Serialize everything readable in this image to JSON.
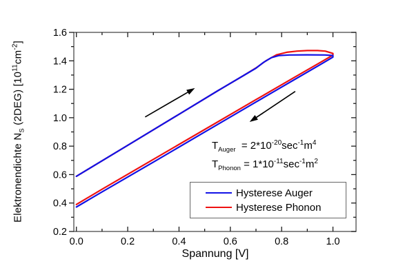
{
  "figure": {
    "x_axis": {
      "label": "Spannung [V]"
    },
    "y_axis": {
      "label_parts": [
        {
          "t": "Elektronendichte N"
        },
        {
          "t": "S",
          "sub": true
        },
        {
          "t": " (2DEG) [10"
        },
        {
          "t": "11",
          "sup": true
        },
        {
          "t": "cm"
        },
        {
          "t": "-2",
          "sup": true
        },
        {
          "t": "]"
        }
      ]
    },
    "annotations": {
      "auger_parts": [
        {
          "t": "T"
        },
        {
          "t": "Auger",
          "sub": true
        },
        {
          "t": "  = 2*10"
        },
        {
          "t": "-20",
          "sup": true
        },
        {
          "t": "sec"
        },
        {
          "t": "-1",
          "sup": true
        },
        {
          "t": "m"
        },
        {
          "t": "4",
          "sup": true
        }
      ],
      "phonon_parts": [
        {
          "t": "T"
        },
        {
          "t": "Phonon",
          "sub": true
        },
        {
          "t": " = 1*10"
        },
        {
          "t": "-11",
          "sup": true
        },
        {
          "t": "sec"
        },
        {
          "t": "-1",
          "sup": true
        },
        {
          "t": "m"
        },
        {
          "t": "2",
          "sup": true
        }
      ]
    },
    "legend": {
      "entries": [
        {
          "label": "Hysterese Auger",
          "color": "#1212e6"
        },
        {
          "label": "Hysterese Phonon",
          "color": "#ee1111"
        }
      ]
    }
  },
  "chart_data": {
    "type": "line",
    "title": "",
    "xlabel": "Spannung [V]",
    "ylabel": "Elektronendichte N_S (2DEG) [10^11 cm^-2]",
    "xlim": [
      -0.01,
      1.09
    ],
    "ylim": [
      0.2,
      1.6
    ],
    "grid": false,
    "x_major_ticks": [
      0.0,
      0.2,
      0.4,
      0.6,
      0.8,
      1.0
    ],
    "x_tick_labels": [
      "0.0",
      "0.2",
      "0.4",
      "0.6",
      "0.8",
      "1.0"
    ],
    "x_minor_ticks": [
      0.1,
      0.3,
      0.5,
      0.7,
      0.9
    ],
    "y_major_ticks": [
      0.2,
      0.4,
      0.6,
      0.8,
      1.0,
      1.2,
      1.4,
      1.6
    ],
    "y_tick_labels": [
      "0.2",
      "0.4",
      "0.6",
      "0.8",
      "1.0",
      "1.2",
      "1.4",
      "1.6"
    ],
    "y_minor_ticks": [
      0.3,
      0.5,
      0.7,
      0.9,
      1.1,
      1.3,
      1.5
    ],
    "legend": {
      "position": "lower right",
      "entries": [
        "Hysterese Auger",
        "Hysterese Phonon"
      ]
    },
    "annotations": [
      "T_Auger = 2*10^-20 sec^-1 m^4",
      "T_Phonon = 1*10^-11 sec^-1 m^2"
    ],
    "arrows": [
      {
        "direction": "up-sweep",
        "from": [
          0.268,
          1.005
        ],
        "to": [
          0.462,
          1.208
        ]
      },
      {
        "direction": "down-sweep",
        "from": [
          0.853,
          1.185
        ],
        "to": [
          0.675,
          0.97
        ]
      }
    ],
    "series": [
      {
        "name": "Hysterese Phonon",
        "color": "#ee1111",
        "points": [
          [
            0.0,
            0.588
          ],
          [
            0.2,
            0.806
          ],
          [
            0.4,
            1.024
          ],
          [
            0.55,
            1.188
          ],
          [
            0.65,
            1.295
          ],
          [
            0.7,
            1.35
          ],
          [
            0.74,
            1.402
          ],
          [
            0.78,
            1.442
          ],
          [
            0.82,
            1.46
          ],
          [
            0.86,
            1.468
          ],
          [
            0.9,
            1.472
          ],
          [
            0.94,
            1.472
          ],
          [
            0.97,
            1.468
          ],
          [
            1.0,
            1.452
          ],
          [
            1.0,
            1.44
          ],
          [
            0.95,
            1.388
          ],
          [
            0.85,
            1.284
          ],
          [
            0.7,
            1.127
          ],
          [
            0.5,
            0.917
          ],
          [
            0.3,
            0.707
          ],
          [
            0.1,
            0.497
          ],
          [
            0.0,
            0.39
          ]
        ]
      },
      {
        "name": "Hysterese Auger",
        "color": "#1212e6",
        "points": [
          [
            0.0,
            0.588
          ],
          [
            0.2,
            0.806
          ],
          [
            0.4,
            1.024
          ],
          [
            0.55,
            1.188
          ],
          [
            0.65,
            1.295
          ],
          [
            0.7,
            1.348
          ],
          [
            0.73,
            1.39
          ],
          [
            0.76,
            1.422
          ],
          [
            0.79,
            1.437
          ],
          [
            0.83,
            1.441
          ],
          [
            0.9,
            1.442
          ],
          [
            0.97,
            1.441
          ],
          [
            1.0,
            1.437
          ],
          [
            1.0,
            1.426
          ],
          [
            0.95,
            1.373
          ],
          [
            0.85,
            1.268
          ],
          [
            0.7,
            1.11
          ],
          [
            0.5,
            0.899
          ],
          [
            0.3,
            0.688
          ],
          [
            0.1,
            0.478
          ],
          [
            0.0,
            0.372
          ]
        ]
      }
    ]
  }
}
